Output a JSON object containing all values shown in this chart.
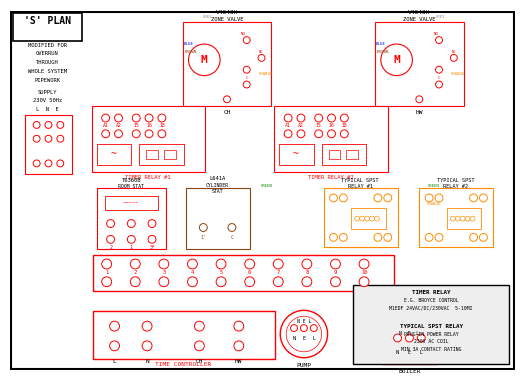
{
  "title": "'S' PLAN",
  "subtitle_lines": [
    "MODIFIED FOR",
    "OVERRUN",
    "THROUGH",
    "WHOLE SYSTEM",
    "PIPEWORK"
  ],
  "supply_text": [
    "SUPPLY",
    "230V 50Hz"
  ],
  "lne_label": "L  N  E",
  "bg_color": "#ffffff",
  "red": "#ff0000",
  "blue": "#0000ff",
  "green": "#008000",
  "orange": "#ff8c00",
  "brown": "#8b4513",
  "black": "#000000",
  "grey": "#888888",
  "timer_relay_info": [
    "TIMER RELAY",
    "E.G. BROYCE CONTROL",
    "M1EDF 24VAC/DC/230VAC  5-10MI",
    "",
    "TYPICAL SPST RELAY",
    "PLUG-IN POWER RELAY",
    "230V AC COIL",
    "MIN 3A CONTACT RATING"
  ],
  "tr1_label": "TIMER RELAY #1",
  "tr2_label": "TIMER RELAY #2",
  "zv1_label": [
    "V4043H",
    "ZONE VALVE"
  ],
  "zv2_label": [
    "V4043H",
    "ZONE VALVE"
  ],
  "roomstat_label": [
    "T6360B",
    "ROOM STAT"
  ],
  "cylstat_label": [
    "L641A",
    "CYLINDER",
    "STAT"
  ],
  "spst1_label": [
    "TYPICAL SPST",
    "RELAY #1"
  ],
  "spst2_label": [
    "TYPICAL SPST",
    "RELAY #2"
  ],
  "tc_label": "TIME CONTROLLER",
  "pump_label": "PUMP",
  "boiler_label": "BOILER",
  "term_labels": [
    "1",
    "2",
    "3",
    "4",
    "5",
    "6",
    "7",
    "8",
    "9",
    "10"
  ],
  "tc_terms": [
    "L",
    "N",
    "CH",
    "HW"
  ]
}
